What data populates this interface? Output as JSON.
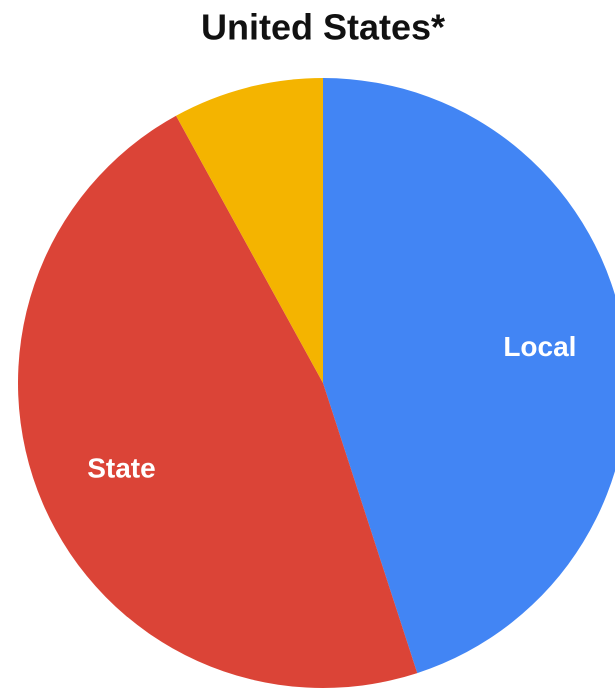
{
  "chart_data": {
    "type": "pie",
    "title": "United States*",
    "categories": [
      "Local",
      "State",
      null
    ],
    "values": [
      45,
      47,
      8
    ],
    "colors": [
      "#4285f4",
      "#db4437",
      "#f4b400"
    ]
  }
}
